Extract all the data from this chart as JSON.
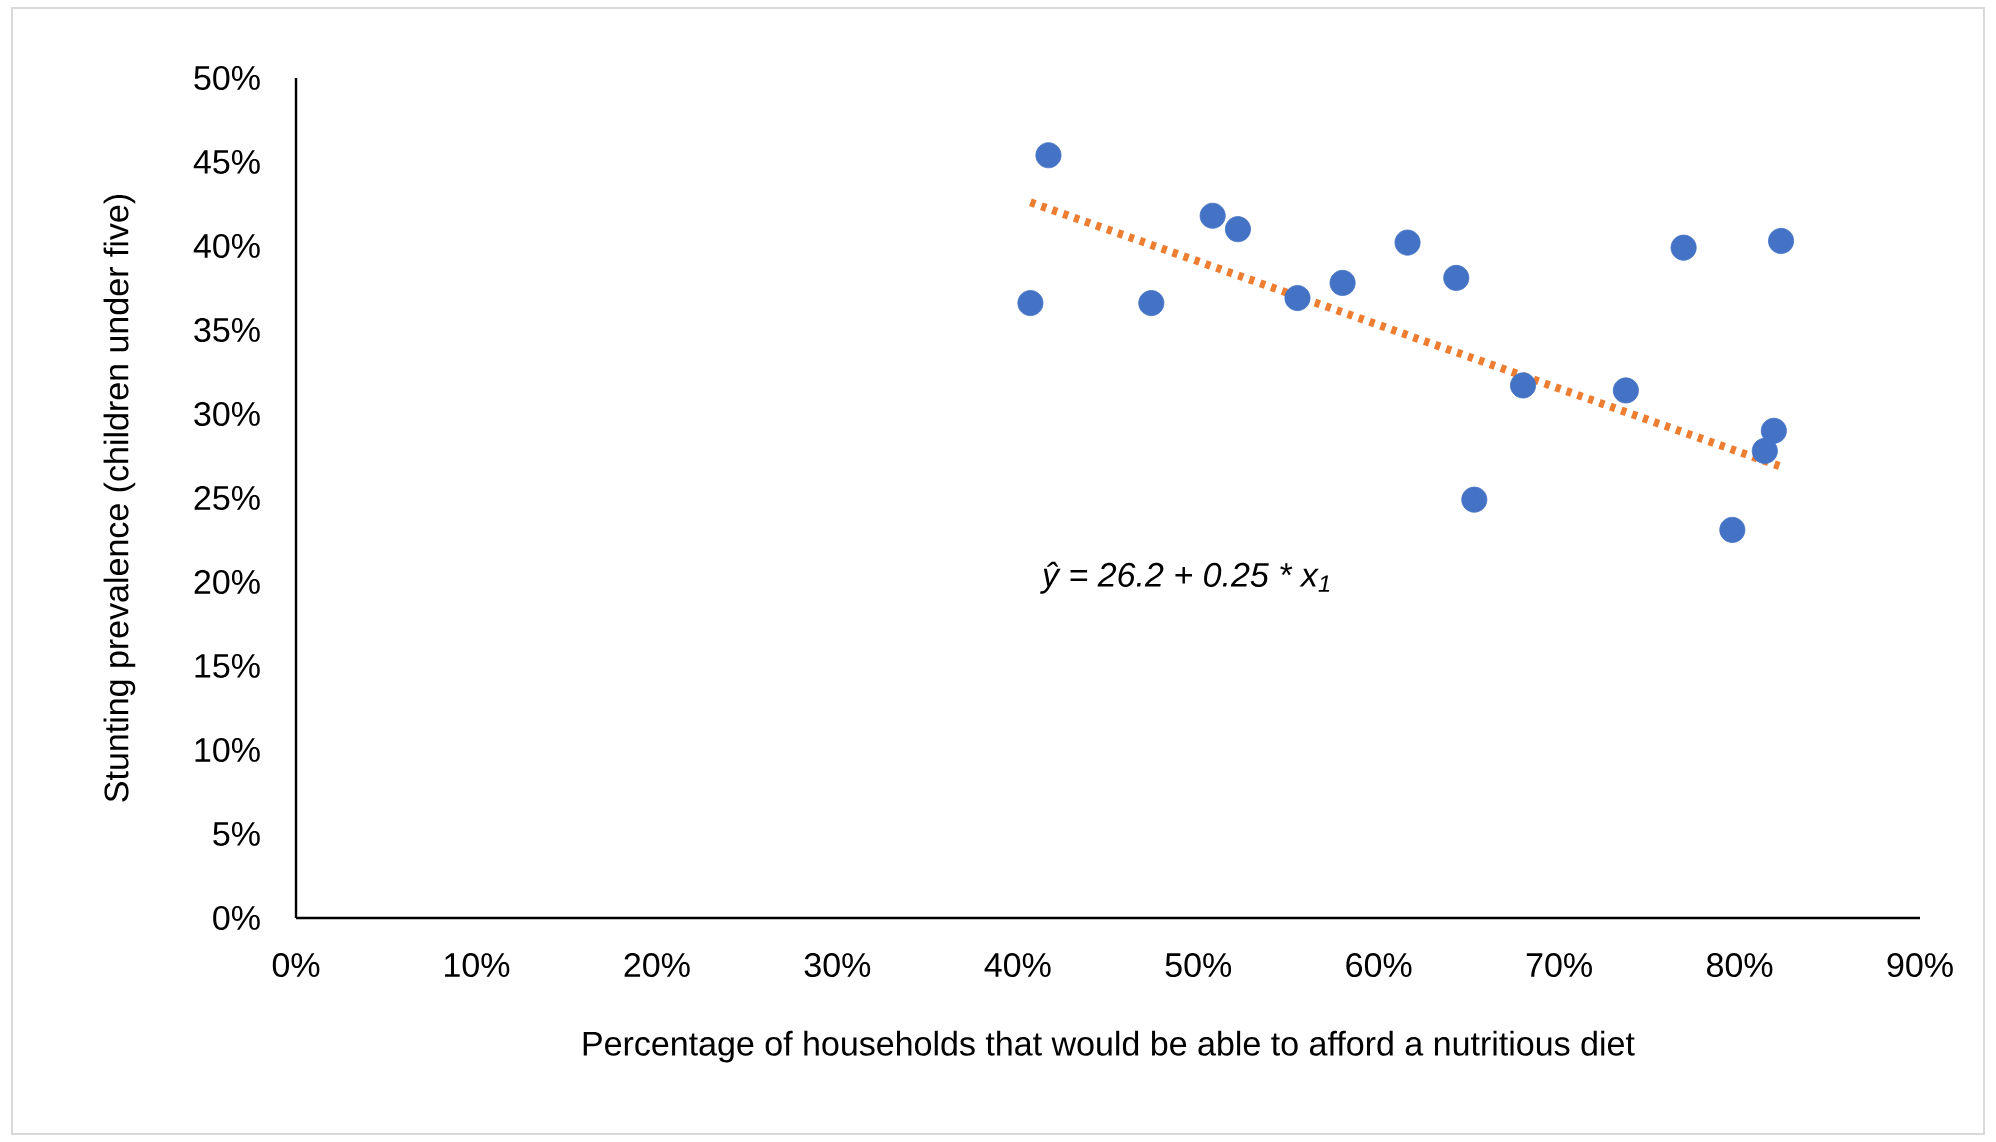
{
  "chart_data": {
    "type": "scatter",
    "xlabel": "Percentage of households that would be able to afford a nutritious diet",
    "ylabel": "Stunting prevalence (children under five)",
    "xlim": [
      0,
      90
    ],
    "ylim": [
      0,
      50
    ],
    "xticks": [
      {
        "value": 0,
        "label": "0%"
      },
      {
        "value": 10,
        "label": "10%"
      },
      {
        "value": 20,
        "label": "20%"
      },
      {
        "value": 30,
        "label": "30%"
      },
      {
        "value": 40,
        "label": "40%"
      },
      {
        "value": 50,
        "label": "50%"
      },
      {
        "value": 60,
        "label": "60%"
      },
      {
        "value": 70,
        "label": "70%"
      },
      {
        "value": 80,
        "label": "80%"
      },
      {
        "value": 90,
        "label": "90%"
      }
    ],
    "yticks": [
      {
        "value": 0,
        "label": "0%"
      },
      {
        "value": 5,
        "label": "5%"
      },
      {
        "value": 10,
        "label": "10%"
      },
      {
        "value": 15,
        "label": "15%"
      },
      {
        "value": 20,
        "label": "20%"
      },
      {
        "value": 25,
        "label": "25%"
      },
      {
        "value": 30,
        "label": "30%"
      },
      {
        "value": 35,
        "label": "35%"
      },
      {
        "value": 40,
        "label": "40%"
      },
      {
        "value": 45,
        "label": "45%"
      },
      {
        "value": 50,
        "label": "50%"
      }
    ],
    "grid": false,
    "series": [
      {
        "color": "#4472c4",
        "marker": "circle",
        "x": [
          41.7,
          40.7,
          47.4,
          50.8,
          52.2,
          55.5,
          58.0,
          61.6,
          64.3,
          65.3,
          68.0,
          73.7,
          76.9,
          79.6,
          81.4,
          81.9,
          82.3
        ],
        "values": [
          45.4,
          36.6,
          36.6,
          41.8,
          41.0,
          36.9,
          37.8,
          40.2,
          38.1,
          24.9,
          31.7,
          31.4,
          39.9,
          23.1,
          27.8,
          29.0,
          40.3
        ]
      },
      {
        "type": "line",
        "color": "#ed7d31",
        "line_style": "dotted",
        "marker": "none",
        "x": [
          40.7,
          82.2
        ],
        "values": [
          42.6,
          26.9
        ]
      }
    ],
    "annotations": [
      "ŷ = 26.2 + 0.25 * x$_{1}$"
    ]
  }
}
